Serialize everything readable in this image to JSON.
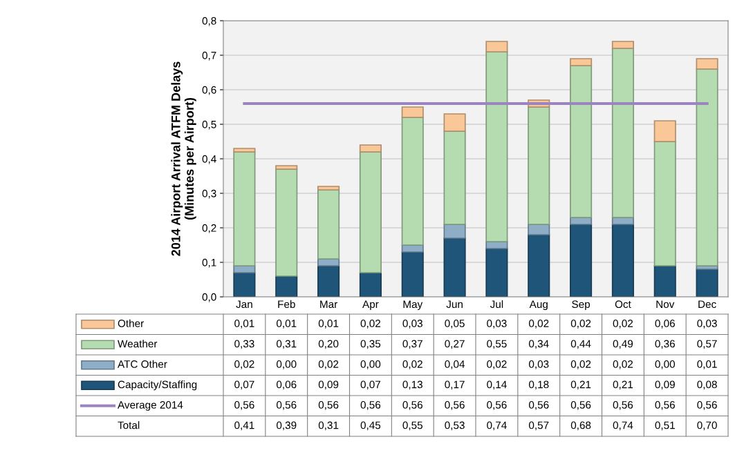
{
  "chart_data": {
    "type": "bar",
    "stacked": true,
    "ylabel": "2014 Airport Arrival ATFM Delays\n(Minutes per Airport)",
    "categories": [
      "Jan",
      "Feb",
      "Mar",
      "Apr",
      "May",
      "Jun",
      "Jul",
      "Aug",
      "Sep",
      "Oct",
      "Nov",
      "Dec"
    ],
    "series": [
      {
        "name": "Capacity/Staffing",
        "color": "#1f5578",
        "values": [
          0.07,
          0.06,
          0.09,
          0.07,
          0.13,
          0.17,
          0.14,
          0.18,
          0.21,
          0.21,
          0.09,
          0.08
        ],
        "value_labels": [
          "0,07",
          "0,06",
          "0,09",
          "0,07",
          "0,13",
          "0,17",
          "0,14",
          "0,18",
          "0,21",
          "0,21",
          "0,09",
          "0,08"
        ]
      },
      {
        "name": "ATC Other",
        "color": "#8eadc6",
        "values": [
          0.02,
          0.0,
          0.02,
          0.0,
          0.02,
          0.04,
          0.02,
          0.03,
          0.02,
          0.02,
          0.0,
          0.01
        ],
        "value_labels": [
          "0,02",
          "0,00",
          "0,02",
          "0,00",
          "0,02",
          "0,04",
          "0,02",
          "0,03",
          "0,02",
          "0,02",
          "0,00",
          "0,01"
        ]
      },
      {
        "name": "Weather",
        "color": "#b5dbb0",
        "values": [
          0.33,
          0.31,
          0.2,
          0.35,
          0.37,
          0.27,
          0.55,
          0.34,
          0.44,
          0.49,
          0.36,
          0.57
        ],
        "value_labels": [
          "0,33",
          "0,31",
          "0,20",
          "0,35",
          "0,37",
          "0,27",
          "0,55",
          "0,34",
          "0,44",
          "0,49",
          "0,36",
          "0,57"
        ]
      },
      {
        "name": "Other",
        "color": "#fac898",
        "values": [
          0.01,
          0.01,
          0.01,
          0.02,
          0.03,
          0.05,
          0.03,
          0.02,
          0.02,
          0.02,
          0.06,
          0.03
        ],
        "value_labels": [
          "0,01",
          "0,01",
          "0,01",
          "0,02",
          "0,03",
          "0,05",
          "0,03",
          "0,02",
          "0,02",
          "0,02",
          "0,06",
          "0,03"
        ]
      },
      {
        "name": "Average 2014",
        "type": "line",
        "color": "#9b85c0",
        "values": [
          0.56,
          0.56,
          0.56,
          0.56,
          0.56,
          0.56,
          0.56,
          0.56,
          0.56,
          0.56,
          0.56,
          0.56
        ],
        "value_labels": [
          "0,56",
          "0,56",
          "0,56",
          "0,56",
          "0,56",
          "0,56",
          "0,56",
          "0,56",
          "0,56",
          "0,56",
          "0,56",
          "0,56"
        ]
      }
    ],
    "annotations": [
      "Total",
      "0,41",
      "0,39",
      "0,31",
      "0,45",
      "0,55",
      "0,53",
      "0,74",
      "0,57",
      "0,68",
      "0,74",
      "0,51",
      "0,70"
    ],
    "ylim": [
      0,
      0.8
    ],
    "yticks": [
      {
        "value": 0,
        "label": "0,0"
      },
      {
        "value": 0.1,
        "label": "0,1"
      },
      {
        "value": 0.2,
        "label": "0,2"
      },
      {
        "value": 0.3,
        "label": "0,3"
      },
      {
        "value": 0.4,
        "label": "0,4"
      },
      {
        "value": 0.5,
        "label": "0,5"
      },
      {
        "value": 0.6,
        "label": "0,6"
      },
      {
        "value": 0.7,
        "label": "0,7"
      },
      {
        "value": 0.8,
        "label": "0,8"
      }
    ],
    "grid": "y",
    "legend": "bottom"
  }
}
